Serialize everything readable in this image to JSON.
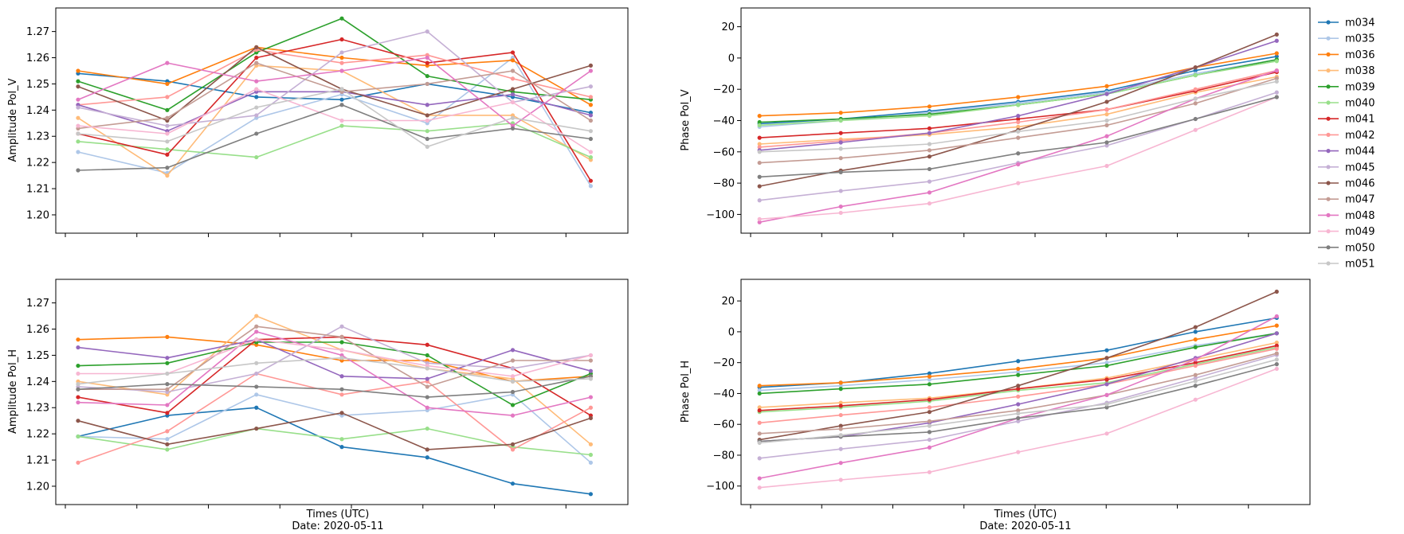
{
  "legend": {
    "entries": [
      "m034",
      "m035",
      "m036",
      "m038",
      "m039",
      "m040",
      "m041",
      "m042",
      "m044",
      "m045",
      "m046",
      "m047",
      "m048",
      "m049",
      "m050",
      "m051"
    ],
    "colors": [
      "#1f77b4",
      "#aec7e8",
      "#ff7f0e",
      "#ffbb78",
      "#2ca02c",
      "#98df8a",
      "#d62728",
      "#ff9896",
      "#9467bd",
      "#c5b0d5",
      "#8c564b",
      "#c49c94",
      "#e377c2",
      "#f7b6d2",
      "#7f7f7f",
      "#c7c7c7"
    ],
    "placement": "outside-right"
  },
  "chart_data": [
    {
      "type": "line",
      "title": "",
      "ylabel": "Amplitude Pol_V",
      "xlabel": "",
      "ylim": [
        1.193,
        1.279
      ],
      "yticks": [
        "1.20",
        "1.21",
        "1.22",
        "1.23",
        "1.24",
        "1.25",
        "1.26",
        "1.27"
      ],
      "ytick_values": [
        1.2,
        1.21,
        1.22,
        1.23,
        1.24,
        1.25,
        1.26,
        1.27
      ],
      "xlim": [
        0,
        7.7
      ],
      "x": [
        0.3,
        1.5,
        2.7,
        3.85,
        5.0,
        6.15,
        7.2
      ],
      "series": [
        {
          "name": "m034",
          "values": [
            1.254,
            1.251,
            1.245,
            1.244,
            1.25,
            1.245,
            1.239
          ]
        },
        {
          "name": "m035",
          "values": [
            1.224,
            1.216,
            1.237,
            1.246,
            1.235,
            1.26,
            1.211
          ]
        },
        {
          "name": "m036",
          "values": [
            1.255,
            1.25,
            1.264,
            1.26,
            1.257,
            1.259,
            1.242
          ]
        },
        {
          "name": "m038",
          "values": [
            1.237,
            1.215,
            1.257,
            1.255,
            1.238,
            1.238,
            1.221
          ]
        },
        {
          "name": "m039",
          "values": [
            1.251,
            1.24,
            1.262,
            1.275,
            1.253,
            1.247,
            1.244
          ]
        },
        {
          "name": "m040",
          "values": [
            1.228,
            1.225,
            1.222,
            1.234,
            1.232,
            1.235,
            1.222
          ]
        },
        {
          "name": "m041",
          "values": [
            1.231,
            1.223,
            1.26,
            1.267,
            1.258,
            1.262,
            1.213
          ]
        },
        {
          "name": "m042",
          "values": [
            1.242,
            1.245,
            1.263,
            1.258,
            1.261,
            1.252,
            1.245
          ]
        },
        {
          "name": "m044",
          "values": [
            1.242,
            1.232,
            1.247,
            1.247,
            1.242,
            1.246,
            1.238
          ]
        },
        {
          "name": "m045",
          "values": [
            1.241,
            1.234,
            1.238,
            1.262,
            1.27,
            1.243,
            1.249
          ]
        },
        {
          "name": "m046",
          "values": [
            1.249,
            1.236,
            1.264,
            1.248,
            1.238,
            1.248,
            1.257
          ]
        },
        {
          "name": "m047",
          "values": [
            1.233,
            1.237,
            1.258,
            1.247,
            1.25,
            1.255,
            1.236
          ]
        },
        {
          "name": "m048",
          "values": [
            1.244,
            1.258,
            1.251,
            1.255,
            1.26,
            1.234,
            1.255
          ]
        },
        {
          "name": "m049",
          "values": [
            1.234,
            1.231,
            1.248,
            1.236,
            1.236,
            1.243,
            1.224
          ]
        },
        {
          "name": "m050",
          "values": [
            1.217,
            1.218,
            1.231,
            1.242,
            1.229,
            1.233,
            1.229
          ]
        },
        {
          "name": "m051",
          "values": [
            1.231,
            1.228,
            1.241,
            1.248,
            1.226,
            1.237,
            1.232
          ]
        }
      ]
    },
    {
      "type": "line",
      "title": "",
      "ylabel": "Phase Pol_V",
      "xlabel": "",
      "ylim": [
        -112,
        32
      ],
      "yticks": [
        "−100",
        "−80",
        "−60",
        "−40",
        "−20",
        "0",
        "20"
      ],
      "ytick_values": [
        -100,
        -80,
        -60,
        -40,
        -20,
        0,
        20
      ],
      "xlim": [
        0,
        7.7
      ],
      "x": [
        0.25,
        1.35,
        2.55,
        3.75,
        4.95,
        6.15,
        7.25
      ],
      "series": [
        {
          "name": "m034",
          "values": [
            -42,
            -39,
            -34,
            -28,
            -21,
            -8,
            1
          ]
        },
        {
          "name": "m035",
          "values": [
            -44,
            -40,
            -35,
            -29,
            -22,
            -10,
            -1
          ]
        },
        {
          "name": "m036",
          "values": [
            -37,
            -35,
            -31,
            -25,
            -18,
            -6,
            3
          ]
        },
        {
          "name": "m038",
          "values": [
            -55,
            -52,
            -49,
            -44,
            -36,
            -22,
            -12
          ]
        },
        {
          "name": "m039",
          "values": [
            -41,
            -39,
            -36,
            -30,
            -23,
            -11,
            -1
          ]
        },
        {
          "name": "m040",
          "values": [
            -43,
            -40,
            -37,
            -30,
            -23,
            -11,
            -2
          ]
        },
        {
          "name": "m041",
          "values": [
            -51,
            -48,
            -45,
            -39,
            -33,
            -21,
            -9
          ]
        },
        {
          "name": "m042",
          "values": [
            -57,
            -53,
            -48,
            -41,
            -33,
            -20,
            -8
          ]
        },
        {
          "name": "m044",
          "values": [
            -59,
            -54,
            -48,
            -37,
            -23,
            -6,
            11
          ]
        },
        {
          "name": "m045",
          "values": [
            -91,
            -85,
            -79,
            -67,
            -56,
            -39,
            -22
          ]
        },
        {
          "name": "m046",
          "values": [
            -82,
            -72,
            -63,
            -46,
            -28,
            -6,
            15
          ]
        },
        {
          "name": "m047",
          "values": [
            -67,
            -64,
            -59,
            -51,
            -43,
            -29,
            -13
          ]
        },
        {
          "name": "m048",
          "values": [
            -105,
            -95,
            -86,
            -68,
            -50,
            -26,
            -8
          ]
        },
        {
          "name": "m049",
          "values": [
            -103,
            -99,
            -93,
            -80,
            -69,
            -46,
            -25
          ]
        },
        {
          "name": "m050",
          "values": [
            -76,
            -73,
            -71,
            -61,
            -54,
            -39,
            -25
          ]
        },
        {
          "name": "m051",
          "values": [
            -60,
            -58,
            -55,
            -47,
            -40,
            -26,
            -15
          ]
        }
      ]
    },
    {
      "type": "line",
      "title": "",
      "ylabel": "Amplitude Pol_H",
      "xlabel": "Times (UTC)",
      "date_label": "Date: 2020-05-11",
      "ylim": [
        1.193,
        1.279
      ],
      "yticks": [
        "1.20",
        "1.21",
        "1.22",
        "1.23",
        "1.24",
        "1.25",
        "1.26",
        "1.27"
      ],
      "ytick_values": [
        1.2,
        1.21,
        1.22,
        1.23,
        1.24,
        1.25,
        1.26,
        1.27
      ],
      "xlim": [
        0,
        7.7
      ],
      "x": [
        0.3,
        1.5,
        2.7,
        3.85,
        5.0,
        6.15,
        7.2
      ],
      "series": [
        {
          "name": "m034",
          "values": [
            1.219,
            1.227,
            1.23,
            1.215,
            1.211,
            1.201,
            1.197
          ]
        },
        {
          "name": "m035",
          "values": [
            1.219,
            1.218,
            1.235,
            1.227,
            1.229,
            1.235,
            1.209
          ]
        },
        {
          "name": "m036",
          "values": [
            1.256,
            1.257,
            1.254,
            1.248,
            1.248,
            1.24,
            1.242
          ]
        },
        {
          "name": "m038",
          "values": [
            1.24,
            1.235,
            1.265,
            1.252,
            1.245,
            1.241,
            1.216
          ]
        },
        {
          "name": "m039",
          "values": [
            1.246,
            1.247,
            1.255,
            1.255,
            1.25,
            1.231,
            1.243
          ]
        },
        {
          "name": "m040",
          "values": [
            1.219,
            1.214,
            1.222,
            1.218,
            1.222,
            1.215,
            1.212
          ]
        },
        {
          "name": "m041",
          "values": [
            1.234,
            1.228,
            1.256,
            1.257,
            1.254,
            1.245,
            1.227
          ]
        },
        {
          "name": "m042",
          "values": [
            1.209,
            1.221,
            1.243,
            1.235,
            1.24,
            1.214,
            1.23
          ]
        },
        {
          "name": "m044",
          "values": [
            1.253,
            1.249,
            1.256,
            1.242,
            1.241,
            1.252,
            1.244
          ]
        },
        {
          "name": "m045",
          "values": [
            1.238,
            1.236,
            1.243,
            1.261,
            1.247,
            1.245,
            1.25
          ]
        },
        {
          "name": "m046",
          "values": [
            1.225,
            1.216,
            1.222,
            1.228,
            1.214,
            1.216,
            1.226
          ]
        },
        {
          "name": "m047",
          "values": [
            1.237,
            1.237,
            1.261,
            1.257,
            1.238,
            1.248,
            1.248
          ]
        },
        {
          "name": "m048",
          "values": [
            1.232,
            1.231,
            1.259,
            1.25,
            1.23,
            1.227,
            1.234
          ]
        },
        {
          "name": "m049",
          "values": [
            1.243,
            1.243,
            1.256,
            1.252,
            1.246,
            1.242,
            1.25
          ]
        },
        {
          "name": "m050",
          "values": [
            1.237,
            1.239,
            1.238,
            1.237,
            1.234,
            1.236,
            1.242
          ]
        },
        {
          "name": "m051",
          "values": [
            1.239,
            1.243,
            1.247,
            1.249,
            1.245,
            1.24,
            1.241
          ]
        }
      ]
    },
    {
      "type": "line",
      "title": "",
      "ylabel": "Phase Pol_H",
      "xlabel": "Times (UTC)",
      "date_label": "Date: 2020-05-11",
      "ylim": [
        -112,
        34
      ],
      "yticks": [
        "−100",
        "−80",
        "−60",
        "−40",
        "−20",
        "0",
        "20"
      ],
      "ytick_values": [
        -100,
        -80,
        -60,
        -40,
        -20,
        0,
        20
      ],
      "xlim": [
        0,
        7.7
      ],
      "x": [
        0.25,
        1.35,
        2.55,
        3.75,
        4.95,
        6.15,
        7.25
      ],
      "series": [
        {
          "name": "m034",
          "values": [
            -36,
            -33,
            -27,
            -19,
            -12,
            0,
            9
          ]
        },
        {
          "name": "m035",
          "values": [
            -38,
            -35,
            -31,
            -26,
            -20,
            -9,
            -1
          ]
        },
        {
          "name": "m036",
          "values": [
            -35,
            -33,
            -29,
            -24,
            -17,
            -5,
            4
          ]
        },
        {
          "name": "m038",
          "values": [
            -49,
            -46,
            -43,
            -37,
            -30,
            -18,
            -7
          ]
        },
        {
          "name": "m039",
          "values": [
            -40,
            -37,
            -34,
            -28,
            -22,
            -10,
            -1
          ]
        },
        {
          "name": "m040",
          "values": [
            -52,
            -49,
            -45,
            -38,
            -33,
            -21,
            -10
          ]
        },
        {
          "name": "m041",
          "values": [
            -51,
            -48,
            -44,
            -37,
            -31,
            -20,
            -9
          ]
        },
        {
          "name": "m042",
          "values": [
            -59,
            -54,
            -49,
            -42,
            -34,
            -22,
            -11
          ]
        },
        {
          "name": "m044",
          "values": [
            -71,
            -68,
            -59,
            -47,
            -34,
            -17,
            -1
          ]
        },
        {
          "name": "m045",
          "values": [
            -82,
            -76,
            -70,
            -58,
            -46,
            -30,
            -15
          ]
        },
        {
          "name": "m046",
          "values": [
            -70,
            -61,
            -52,
            -35,
            -17,
            3,
            26
          ]
        },
        {
          "name": "m047",
          "values": [
            -66,
            -63,
            -58,
            -51,
            -41,
            -28,
            -14
          ]
        },
        {
          "name": "m048",
          "values": [
            -95,
            -85,
            -75,
            -56,
            -41,
            -18,
            10
          ]
        },
        {
          "name": "m049",
          "values": [
            -101,
            -96,
            -91,
            -78,
            -66,
            -44,
            -24
          ]
        },
        {
          "name": "m050",
          "values": [
            -71,
            -68,
            -65,
            -56,
            -49,
            -35,
            -21
          ]
        },
        {
          "name": "m051",
          "values": [
            -72,
            -67,
            -61,
            -53,
            -47,
            -32,
            -18
          ]
        }
      ]
    }
  ]
}
